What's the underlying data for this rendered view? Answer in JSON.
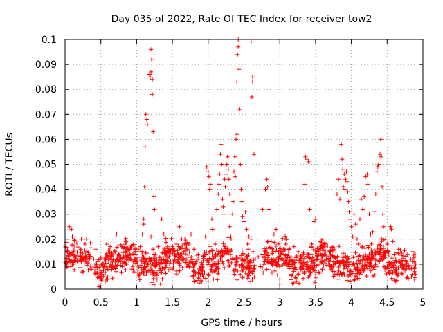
{
  "chart_data": {
    "type": "scatter",
    "title": "Day 035 of 2022, Rate Of TEC Index for receiver tow2",
    "xlabel": "GPS time / hours",
    "ylabel": "ROTI / TECUs",
    "xlim": [
      0,
      5
    ],
    "ylim": [
      0,
      0.1
    ],
    "xticks": [
      0,
      0.5,
      1,
      1.5,
      2,
      2.5,
      3,
      3.5,
      4,
      4.5,
      5
    ],
    "xtick_labels": [
      "0",
      "0.5",
      "1",
      "1.5",
      "2",
      "2.5",
      "3",
      "3.5",
      "4",
      "4.5",
      "5"
    ],
    "yticks": [
      0,
      0.01,
      0.02,
      0.03,
      0.04,
      0.05,
      0.06,
      0.07,
      0.08,
      0.09,
      0.1
    ],
    "ytick_labels": [
      "0",
      "0.01",
      "0.02",
      "0.03",
      "0.04",
      "0.05",
      "0.06",
      "0.07",
      "0.08",
      "0.09",
      "0.1"
    ],
    "grid": true,
    "marker": "+",
    "color": "#ff0000",
    "series": [
      {
        "name": "ROTI",
        "points": [
          [
            0.02,
            0.011
          ],
          [
            0.05,
            0.012
          ],
          [
            0.08,
            0.009
          ],
          [
            0.1,
            0.014
          ],
          [
            0.12,
            0.01
          ],
          [
            0.06,
            0.025
          ],
          [
            0.09,
            0.024
          ],
          [
            0.15,
            0.013
          ],
          [
            0.18,
            0.011
          ],
          [
            0.22,
            0.016
          ],
          [
            0.25,
            0.012
          ],
          [
            0.28,
            0.018
          ],
          [
            0.3,
            0.02
          ],
          [
            0.33,
            0.014
          ],
          [
            0.36,
            0.008
          ],
          [
            0.4,
            0.012
          ],
          [
            0.43,
            0.016
          ],
          [
            0.46,
            0.011
          ],
          [
            0.5,
            0.006
          ],
          [
            0.52,
            0.004
          ],
          [
            0.55,
            0.012
          ],
          [
            0.58,
            0.018
          ],
          [
            0.6,
            0.013
          ],
          [
            0.63,
            0.017
          ],
          [
            0.66,
            0.011
          ],
          [
            0.7,
            0.015
          ],
          [
            0.72,
            0.022
          ],
          [
            0.75,
            0.014
          ],
          [
            0.78,
            0.011
          ],
          [
            0.8,
            0.009
          ],
          [
            0.83,
            0.013
          ],
          [
            0.86,
            0.016
          ],
          [
            0.9,
            0.012
          ],
          [
            0.93,
            0.008
          ],
          [
            0.96,
            0.014
          ],
          [
            1.0,
            0.011
          ],
          [
            1.02,
            0.015
          ],
          [
            1.05,
            0.017
          ],
          [
            1.08,
            0.022
          ],
          [
            1.1,
            0.026
          ],
          [
            1.1,
            0.028
          ],
          [
            1.11,
            0.041
          ],
          [
            1.12,
            0.057
          ],
          [
            1.13,
            0.07
          ],
          [
            1.14,
            0.068
          ],
          [
            1.15,
            0.066
          ],
          [
            1.18,
            0.086
          ],
          [
            1.19,
            0.085
          ],
          [
            1.2,
            0.087
          ],
          [
            1.2,
            0.096
          ],
          [
            1.21,
            0.092
          ],
          [
            1.22,
            0.084
          ],
          [
            1.22,
            0.078
          ],
          [
            1.23,
            0.063
          ],
          [
            1.24,
            0.037
          ],
          [
            1.25,
            0.032
          ],
          [
            1.2,
            0.021
          ],
          [
            1.24,
            0.014
          ],
          [
            1.28,
            0.012
          ],
          [
            1.3,
            0.017
          ],
          [
            1.35,
            0.028
          ],
          [
            1.38,
            0.022
          ],
          [
            1.4,
            0.013
          ],
          [
            1.43,
            0.011
          ],
          [
            1.46,
            0.016
          ],
          [
            1.5,
            0.008
          ],
          [
            1.53,
            0.012
          ],
          [
            1.56,
            0.018
          ],
          [
            1.6,
            0.025
          ],
          [
            1.63,
            0.02
          ],
          [
            1.66,
            0.015
          ],
          [
            1.7,
            0.012
          ],
          [
            1.73,
            0.018
          ],
          [
            1.76,
            0.022
          ],
          [
            1.8,
            0.016
          ],
          [
            1.83,
            0.011
          ],
          [
            1.86,
            0.014
          ],
          [
            1.9,
            0.009
          ],
          [
            1.93,
            0.013
          ],
          [
            1.96,
            0.021
          ],
          [
            1.98,
            0.049
          ],
          [
            2.0,
            0.047
          ],
          [
            2.01,
            0.045
          ],
          [
            2.02,
            0.04
          ],
          [
            2.03,
            0.042
          ],
          [
            2.05,
            0.028
          ],
          [
            2.06,
            0.024
          ],
          [
            2.0,
            0.003
          ],
          [
            2.08,
            0.013
          ],
          [
            2.1,
            0.018
          ],
          [
            2.12,
            0.032
          ],
          [
            2.14,
            0.038
          ],
          [
            2.15,
            0.042
          ],
          [
            2.16,
            0.046
          ],
          [
            2.17,
            0.054
          ],
          [
            2.18,
            0.058
          ],
          [
            2.19,
            0.05
          ],
          [
            2.2,
            0.036
          ],
          [
            2.21,
            0.033
          ],
          [
            2.22,
            0.03
          ],
          [
            2.23,
            0.044
          ],
          [
            2.24,
            0.041
          ],
          [
            2.25,
            0.046
          ],
          [
            2.26,
            0.05
          ],
          [
            2.27,
            0.053
          ],
          [
            2.28,
            0.048
          ],
          [
            2.29,
            0.044
          ],
          [
            2.3,
            0.038
          ],
          [
            2.3,
            0.025
          ],
          [
            2.32,
            0.02
          ],
          [
            2.34,
            0.03
          ],
          [
            2.35,
            0.035
          ],
          [
            2.36,
            0.047
          ],
          [
            2.37,
            0.053
          ],
          [
            2.38,
            0.045
          ],
          [
            2.39,
            0.06
          ],
          [
            2.4,
            0.062
          ],
          [
            2.4,
            0.083
          ],
          [
            2.41,
            0.094
          ],
          [
            2.42,
            0.097
          ],
          [
            2.42,
            0.1
          ],
          [
            2.43,
            0.088
          ],
          [
            2.44,
            0.072
          ],
          [
            2.45,
            0.05
          ],
          [
            2.46,
            0.04
          ],
          [
            2.47,
            0.035
          ],
          [
            2.48,
            0.029
          ],
          [
            2.5,
            0.027
          ],
          [
            2.52,
            0.031
          ],
          [
            2.54,
            0.024
          ],
          [
            2.55,
            0.018
          ],
          [
            2.56,
            0.016
          ],
          [
            2.57,
            0.021
          ],
          [
            2.6,
            0.099
          ],
          [
            2.61,
            0.077
          ],
          [
            2.62,
            0.085
          ],
          [
            2.62,
            0.083
          ],
          [
            2.64,
            0.054
          ],
          [
            2.6,
            0.02
          ],
          [
            2.63,
            0.015
          ],
          [
            2.66,
            0.012
          ],
          [
            2.7,
            0.013
          ],
          [
            2.73,
            0.009
          ],
          [
            2.75,
            0.014
          ],
          [
            2.76,
            0.032
          ],
          [
            2.8,
            0.04
          ],
          [
            2.82,
            0.044
          ],
          [
            2.83,
            0.041
          ],
          [
            2.85,
            0.032
          ],
          [
            2.88,
            0.019
          ],
          [
            2.9,
            0.015
          ],
          [
            2.92,
            0.022
          ],
          [
            2.95,
            0.024
          ],
          [
            2.98,
            0.018
          ],
          [
            3.0,
            0.004
          ],
          [
            3.0,
            0.002
          ],
          [
            3.02,
            0.012
          ],
          [
            3.05,
            0.016
          ],
          [
            3.08,
            0.011
          ],
          [
            3.1,
            0.014
          ],
          [
            3.13,
            0.009
          ],
          [
            3.16,
            0.013
          ],
          [
            3.2,
            0.017
          ],
          [
            3.23,
            0.012
          ],
          [
            3.26,
            0.015
          ],
          [
            3.3,
            0.01
          ],
          [
            3.33,
            0.014
          ],
          [
            3.35,
            0.042
          ],
          [
            3.36,
            0.053
          ],
          [
            3.38,
            0.052
          ],
          [
            3.4,
            0.051
          ],
          [
            3.42,
            0.032
          ],
          [
            3.45,
            0.018
          ],
          [
            3.48,
            0.027
          ],
          [
            3.5,
            0.028
          ],
          [
            3.52,
            0.013
          ],
          [
            3.55,
            0.016
          ],
          [
            3.58,
            0.011
          ],
          [
            3.6,
            0.014
          ],
          [
            3.63,
            0.018
          ],
          [
            3.66,
            0.012
          ],
          [
            3.7,
            0.015
          ],
          [
            3.73,
            0.01
          ],
          [
            3.76,
            0.013
          ],
          [
            3.8,
            0.038
          ],
          [
            3.82,
            0.044
          ],
          [
            3.84,
            0.036
          ],
          [
            3.86,
            0.058
          ],
          [
            3.87,
            0.052
          ],
          [
            3.88,
            0.048
          ],
          [
            3.89,
            0.041
          ],
          [
            3.9,
            0.046
          ],
          [
            3.91,
            0.04
          ],
          [
            3.92,
            0.044
          ],
          [
            3.93,
            0.047
          ],
          [
            3.94,
            0.043
          ],
          [
            3.95,
            0.039
          ],
          [
            3.96,
            0.035
          ],
          [
            3.97,
            0.031
          ],
          [
            3.98,
            0.028
          ],
          [
            4.0,
            0.025
          ],
          [
            4.02,
            0.021
          ],
          [
            4.04,
            0.03
          ],
          [
            4.06,
            0.026
          ],
          [
            4.08,
            0.02
          ],
          [
            4.1,
            0.018
          ],
          [
            4.12,
            0.028
          ],
          [
            4.14,
            0.036
          ],
          [
            4.16,
            0.032
          ],
          [
            4.18,
            0.037
          ],
          [
            4.2,
            0.045
          ],
          [
            4.22,
            0.046
          ],
          [
            4.23,
            0.042
          ],
          [
            4.25,
            0.03
          ],
          [
            4.27,
            0.022
          ],
          [
            4.28,
            0.018
          ],
          [
            4.3,
            0.023
          ],
          [
            4.32,
            0.031
          ],
          [
            4.34,
            0.038
          ],
          [
            4.36,
            0.047
          ],
          [
            4.37,
            0.049
          ],
          [
            4.38,
            0.05
          ],
          [
            4.4,
            0.054
          ],
          [
            4.41,
            0.06
          ],
          [
            4.42,
            0.053
          ],
          [
            4.43,
            0.041
          ],
          [
            4.44,
            0.03
          ],
          [
            4.45,
            0.025
          ],
          [
            4.48,
            0.02
          ],
          [
            4.5,
            0.018
          ],
          [
            4.52,
            0.015
          ],
          [
            4.55,
            0.025
          ],
          [
            4.56,
            0.024
          ],
          [
            4.58,
            0.019
          ],
          [
            4.6,
            0.014
          ],
          [
            4.63,
            0.011
          ],
          [
            4.66,
            0.016
          ],
          [
            4.7,
            0.012
          ],
          [
            4.73,
            0.008
          ],
          [
            4.76,
            0.013
          ],
          [
            4.8,
            0.009
          ],
          [
            4.83,
            0.012
          ],
          [
            4.86,
            0.015
          ],
          [
            4.9,
            0.01
          ],
          [
            4.88,
            0.007
          ]
        ]
      }
    ],
    "baseline_band": {
      "note": "dense cloud of points around 0.004–0.02 TECUs across the whole time range",
      "x_range": [
        0.0,
        4.9
      ],
      "y_center": 0.011,
      "y_spread": 0.006,
      "gap": [
        2.65,
        2.75
      ],
      "count": 1400
    }
  }
}
